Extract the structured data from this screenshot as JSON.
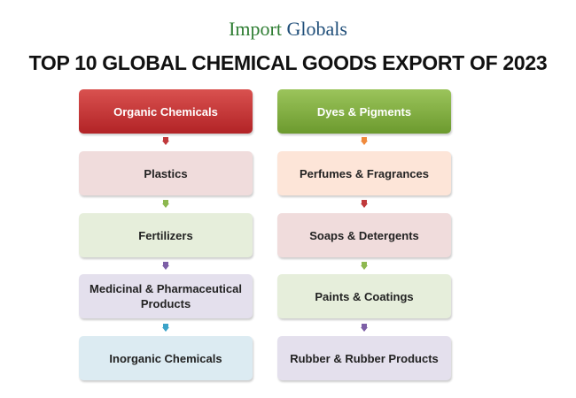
{
  "logo": {
    "part1": "Import ",
    "part2": "Globals"
  },
  "title": "TOP 10 GLOBAL CHEMICAL GOODS EXPORT OF 2023",
  "left_column": [
    {
      "label": "Organic Chemicals",
      "color": "#c0393b"
    },
    {
      "label": "Plastics",
      "color": "#f0dcdc"
    },
    {
      "label": "Fertilizers",
      "color": "#e6eedb"
    },
    {
      "label": "Medicinal & Pharmaceutical Products",
      "color": "#e4e0ed"
    },
    {
      "label": "Inorganic Chemicals",
      "color": "#dcebf2"
    }
  ],
  "right_column": [
    {
      "label": "Dyes & Pigments",
      "color": "#86b245"
    },
    {
      "label": "Perfumes & Fragrances",
      "color": "#fde5d8"
    },
    {
      "label": "Soaps & Detergents",
      "color": "#f0dcdc"
    },
    {
      "label": "Paints & Coatings",
      "color": "#e6eedb"
    },
    {
      "label": "Rubber & Rubber Products",
      "color": "#e4e0ed"
    }
  ],
  "left_arrows": [
    "#c0393b",
    "#8db84f",
    "#7d5fa6",
    "#3ba3c8"
  ],
  "right_arrows": [
    "#f08a3c",
    "#c0393b",
    "#8db84f",
    "#7d5fa6"
  ]
}
